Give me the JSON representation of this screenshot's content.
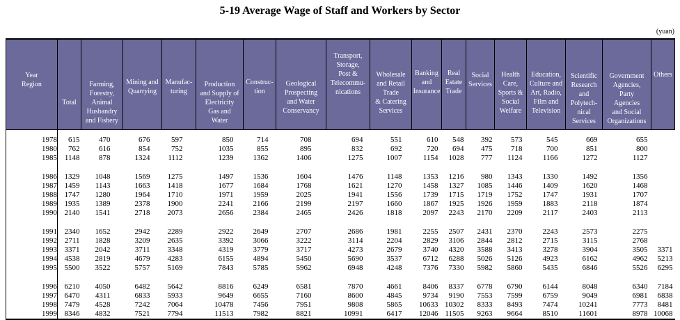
{
  "title": "5-19 Average Wage of Staff and Workers by Sector",
  "unit_note": "(yuan)",
  "colors": {
    "header_bg": "#6b6a9b",
    "header_text": "#ffffff",
    "border": "#000000"
  },
  "table": {
    "columns": [
      "Year\nRegion",
      "Total",
      "Farming,\nForestry,\nAnimal\nHusbandry\nand Fishery",
      "Mining and\nQuarrying",
      "Manufac-\nturing",
      "Production\nand Supply of\nElectricity\nGas and\nWater",
      "Construc-\ntion",
      "Geological\nProspecting\nand Water\nConservancy",
      "Transport,\nStorage,\nPost &\nTelecommu-\nnications",
      "Wholesale\nand Retail\nTrade\n& Catering\nServices",
      "Banking\nand\nInsurance",
      "Real\nEstate\nTrade",
      "Social\nServices",
      "Health\nCare,\nSports &\nSocial\nWelfare",
      "Education,\nCulture and\nArt, Radio,\nFilm and\nTelevision",
      "Scientific\nResearch\nand\nPolytech-\nnical\nServices",
      "Government\nAgencies,\nParty\nAgencies\nand  Social\nOrganizations",
      "Others"
    ],
    "row_groups": [
      [
        [
          "1978",
          615,
          470,
          676,
          597,
          850,
          714,
          708,
          694,
          551,
          610,
          548,
          392,
          573,
          545,
          669,
          655,
          ""
        ],
        [
          "1980",
          762,
          616,
          854,
          752,
          1035,
          855,
          895,
          832,
          692,
          720,
          694,
          475,
          718,
          700,
          851,
          800,
          ""
        ],
        [
          "1985",
          1148,
          878,
          1324,
          1112,
          1239,
          1362,
          1406,
          1275,
          1007,
          1154,
          1028,
          777,
          1124,
          1166,
          1272,
          1127,
          ""
        ]
      ],
      [
        [
          "1986",
          1329,
          1048,
          1569,
          1275,
          1497,
          1536,
          1604,
          1476,
          1148,
          1353,
          1216,
          980,
          1343,
          1330,
          1492,
          1356,
          ""
        ],
        [
          "1987",
          1459,
          1143,
          1663,
          1418,
          1677,
          1684,
          1768,
          1621,
          1270,
          1458,
          1327,
          1085,
          1446,
          1409,
          1620,
          1468,
          ""
        ],
        [
          "1988",
          1747,
          1280,
          1964,
          1710,
          1971,
          1959,
          2025,
          1941,
          1556,
          1739,
          1715,
          1719,
          1752,
          1747,
          1931,
          1707,
          ""
        ],
        [
          "1989",
          1935,
          1389,
          2378,
          1900,
          2241,
          2166,
          2199,
          2197,
          1660,
          1867,
          1925,
          1926,
          1959,
          1883,
          2118,
          1874,
          ""
        ],
        [
          "1990",
          2140,
          1541,
          2718,
          2073,
          2656,
          2384,
          2465,
          2426,
          1818,
          2097,
          2243,
          2170,
          2209,
          2117,
          2403,
          2113,
          ""
        ]
      ],
      [
        [
          "1991",
          2340,
          1652,
          2942,
          2289,
          2922,
          2649,
          2707,
          2686,
          1981,
          2255,
          2507,
          2431,
          2370,
          2243,
          2573,
          2275,
          ""
        ],
        [
          "1992",
          2711,
          1828,
          3209,
          2635,
          3392,
          3066,
          3222,
          3114,
          2204,
          2829,
          3106,
          2844,
          2812,
          2715,
          3115,
          2768,
          ""
        ],
        [
          "1993",
          3371,
          2042,
          3711,
          3348,
          4319,
          3779,
          3717,
          4273,
          2679,
          3740,
          4320,
          3588,
          3413,
          3278,
          3904,
          3505,
          3371
        ],
        [
          "1994",
          4538,
          2819,
          4679,
          4283,
          6155,
          4894,
          5450,
          5690,
          3537,
          6712,
          6288,
          5026,
          5126,
          4923,
          6162,
          4962,
          5213
        ],
        [
          "1995",
          5500,
          3522,
          5757,
          5169,
          7843,
          5785,
          5962,
          6948,
          4248,
          7376,
          7330,
          5982,
          5860,
          5435,
          6846,
          5526,
          6295
        ]
      ],
      [
        [
          "1996",
          6210,
          4050,
          6482,
          5642,
          8816,
          6249,
          6581,
          7870,
          4661,
          8406,
          8337,
          6778,
          6790,
          6144,
          8048,
          6340,
          7184
        ],
        [
          "1997",
          6470,
          4311,
          6833,
          5933,
          9649,
          6655,
          7160,
          8600,
          4845,
          9734,
          9190,
          7553,
          7599,
          6759,
          9049,
          6981,
          6838
        ],
        [
          "1998",
          7479,
          4528,
          7242,
          7064,
          10478,
          7456,
          7951,
          9808,
          5865,
          10633,
          10302,
          8333,
          8493,
          7474,
          10241,
          7773,
          8481
        ],
        [
          "1999",
          8346,
          4832,
          7521,
          7794,
          11513,
          7982,
          8821,
          10991,
          6417,
          12046,
          11505,
          9263,
          9664,
          8510,
          11601,
          8978,
          10068
        ]
      ]
    ]
  }
}
